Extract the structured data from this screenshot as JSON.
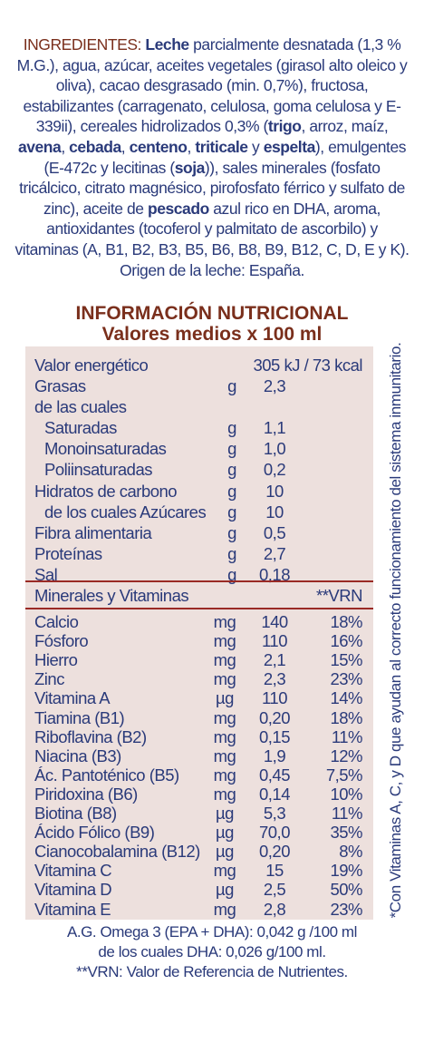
{
  "ingredients": {
    "label": "INGREDIENTES:",
    "parts": [
      {
        "t": " ",
        "b": false
      },
      {
        "t": "Leche",
        "b": true
      },
      {
        "t": " parcialmente desnatada (1,3 % M.G.), agua, azúcar, aceites vegetales (girasol alto oleico y oliva), cacao desgrasado (min. 0,7%), fructosa, estabilizantes (carragenato, celulosa, goma celulosa y E-339ii), cereales hidrolizados 0,3% (",
        "b": false
      },
      {
        "t": "trigo",
        "b": true
      },
      {
        "t": ", arroz, maíz, ",
        "b": false
      },
      {
        "t": "avena",
        "b": true
      },
      {
        "t": ", ",
        "b": false
      },
      {
        "t": "cebada",
        "b": true
      },
      {
        "t": ", ",
        "b": false
      },
      {
        "t": "centeno",
        "b": true
      },
      {
        "t": ", ",
        "b": false
      },
      {
        "t": "triticale",
        "b": true
      },
      {
        "t": " y ",
        "b": false
      },
      {
        "t": "espelta",
        "b": true
      },
      {
        "t": "), emulgentes (E-472c y lecitinas (",
        "b": false
      },
      {
        "t": "soja",
        "b": true
      },
      {
        "t": ")), sales minerales (fosfato tricálcico, citrato magnésico, pirofosfato férrico y sulfato de zinc), aceite de ",
        "b": false
      },
      {
        "t": "pescado",
        "b": true
      },
      {
        "t": " azul rico en DHA, aroma, antioxidantes (tocoferol y palmitato de ascorbilo) y vitaminas (A, B1, B2, B3, B5, B6, B8, B9, B12, C, D, E y K).  Origen de la leche: España.",
        "b": false
      }
    ]
  },
  "nutrition": {
    "title": "INFORMACIÓN NUTRICIONAL",
    "subtitle": "Valores medios x 100 ml",
    "energy": {
      "name": "Valor energético",
      "value": "305 kJ / 73 kcal"
    },
    "rows": [
      {
        "name": "Grasas",
        "unit": "g",
        "value": "2,3",
        "indent": false
      },
      {
        "name": "de las cuales",
        "unit": "",
        "value": "",
        "indent": false
      },
      {
        "name": "Saturadas",
        "unit": "g",
        "value": "1,1",
        "indent": true
      },
      {
        "name": "Monoinsaturadas",
        "unit": "g",
        "value": "1,0",
        "indent": true
      },
      {
        "name": "Poliinsaturadas",
        "unit": "g",
        "value": "0,2",
        "indent": true
      },
      {
        "name": "Hidratos de carbono",
        "unit": "g",
        "value": "10",
        "indent": false
      },
      {
        "name": "de los cuales Azúcares",
        "unit": "g",
        "value": "10",
        "indent": true
      },
      {
        "name": "Fibra alimentaria",
        "unit": "g",
        "value": "0,5",
        "indent": false
      },
      {
        "name": "Proteínas",
        "unit": "g",
        "value": "2,7",
        "indent": false
      },
      {
        "name": "Sal",
        "unit": "g",
        "value": "0,18",
        "indent": false
      }
    ],
    "minerals_header": {
      "label": "Minerales y Vitaminas",
      "vrn": "**VRN"
    },
    "minerals": [
      {
        "name": "Calcio",
        "unit": "mg",
        "value": "140",
        "vrn": "18%"
      },
      {
        "name": "Fósforo",
        "unit": "mg",
        "value": "110",
        "vrn": "16%"
      },
      {
        "name": "Hierro",
        "unit": "mg",
        "value": "2,1",
        "vrn": "15%"
      },
      {
        "name": "Zinc",
        "unit": "mg",
        "value": "2,3",
        "vrn": "23%"
      },
      {
        "name": "Vitamina A",
        "unit": "µg",
        "value": "110",
        "vrn": "14%"
      },
      {
        "name": "Tiamina (B1)",
        "unit": "mg",
        "value": "0,20",
        "vrn": "18%"
      },
      {
        "name": "Riboflavina (B2)",
        "unit": "mg",
        "value": "0,15",
        "vrn": "11%"
      },
      {
        "name": "Niacina (B3)",
        "unit": "mg",
        "value": "1,9",
        "vrn": "12%"
      },
      {
        "name": "Ác. Pantoténico (B5)",
        "unit": "mg",
        "value": "0,45",
        "vrn": "7,5%"
      },
      {
        "name": "Piridoxina (B6)",
        "unit": "mg",
        "value": "0,14",
        "vrn": "10%"
      },
      {
        "name": "Biotina (B8)",
        "unit": "µg",
        "value": "5,3",
        "vrn": "11%"
      },
      {
        "name": "Ácido Fólico (B9)",
        "unit": "µg",
        "value": "70,0",
        "vrn": "35%"
      },
      {
        "name": "Cianocobalamina (B12)",
        "unit": "µg",
        "value": "0,20",
        "vrn": "8%"
      },
      {
        "name": "Vitamina C",
        "unit": "mg",
        "value": "15",
        "vrn": "19%"
      },
      {
        "name": "Vitamina D",
        "unit": "µg",
        "value": "2,5",
        "vrn": "50%"
      },
      {
        "name": "Vitamina E",
        "unit": "mg",
        "value": "2,8",
        "vrn": "23%"
      }
    ]
  },
  "footnotes": {
    "omega": "A.G. Omega 3 (EPA + DHA): 0,042 g /100 ml",
    "dha": "de los cuales DHA: 0,026 g/100 ml.",
    "vrn_note": "**VRN: Valor de Referencia de Nutrientes."
  },
  "side_note": "*Con Vitaminas A, C, y D que ayudan al correcto funcionamiento del sistema inmunitario.",
  "colors": {
    "title_brown": "#7a2f1c",
    "text_navy": "#2a3a7a",
    "table_bg": "#ede0dd",
    "separator_red": "#9a2a25"
  }
}
